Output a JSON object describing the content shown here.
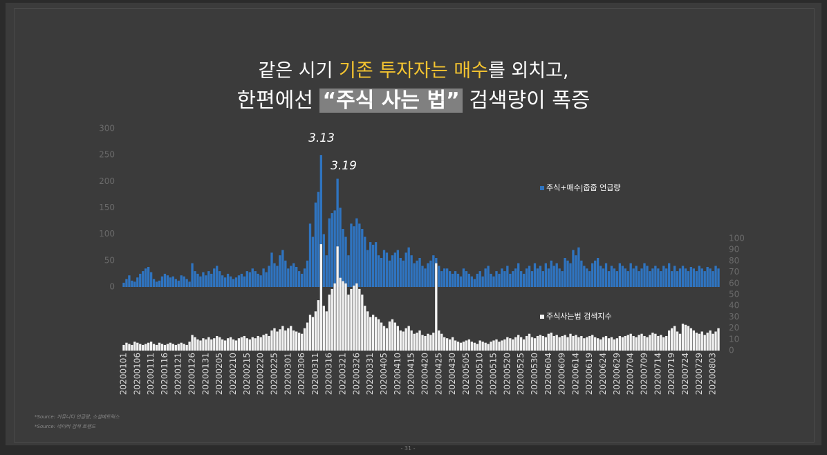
{
  "title_line1": [
    "같은 시기 ",
    "기존 투자자는 매수",
    "를 외치고,"
  ],
  "title_line2": [
    "한편에선 ",
    "“주식 사는 법”",
    " 검색량이 폭증"
  ],
  "sources": [
    "*Source: 커뮤니티 언급량, 소셜메트릭스",
    "*Source: 네이버 검색 트렌드"
  ],
  "page_number": "- 31 -",
  "chart_data": {
    "type": "bar",
    "annotations": [
      "3.13",
      "3.19"
    ],
    "categories": [
      "20200101",
      null,
      null,
      null,
      null,
      "20200106",
      null,
      null,
      null,
      null,
      "20200111",
      null,
      null,
      null,
      null,
      "20200116",
      null,
      null,
      null,
      null,
      "20200121",
      null,
      null,
      null,
      null,
      "20200126",
      null,
      null,
      null,
      null,
      "20200131",
      null,
      null,
      null,
      null,
      "20200205",
      null,
      null,
      null,
      null,
      "20200210",
      null,
      null,
      null,
      null,
      "20200215",
      null,
      null,
      null,
      null,
      "20200220",
      null,
      null,
      null,
      null,
      "20200225",
      null,
      null,
      null,
      null,
      "20200301",
      null,
      null,
      null,
      null,
      "20200306",
      null,
      null,
      null,
      null,
      "20200311",
      null,
      null,
      null,
      null,
      "20200316",
      null,
      null,
      null,
      null,
      "20200321",
      null,
      null,
      null,
      null,
      "20200326",
      null,
      null,
      null,
      null,
      "20200331",
      null,
      null,
      null,
      null,
      "20200405",
      null,
      null,
      null,
      null,
      "20200410",
      null,
      null,
      null,
      null,
      "20200415",
      null,
      null,
      null,
      null,
      "20200420",
      null,
      null,
      null,
      null,
      "20200425",
      null,
      null,
      null,
      null,
      "20200430",
      null,
      null,
      null,
      null,
      "20200505",
      null,
      null,
      null,
      null,
      "20200510",
      null,
      null,
      null,
      null,
      "20200515",
      null,
      null,
      null,
      null,
      "20200520",
      null,
      null,
      null,
      null,
      "20200525",
      null,
      null,
      null,
      null,
      "20200530",
      null,
      null,
      null,
      null,
      "20200604",
      null,
      null,
      null,
      null,
      "20200609",
      null,
      null,
      null,
      null,
      "20200614",
      null,
      null,
      null,
      null,
      "20200619",
      null,
      null,
      null,
      null,
      "20200624",
      null,
      null,
      null,
      null,
      "20200629",
      null,
      null,
      null,
      null,
      "20200704",
      null,
      null,
      null,
      null,
      "20200709",
      null,
      null,
      null,
      null,
      "20200714",
      null,
      null,
      null,
      null,
      "20200719",
      null,
      null,
      null,
      null,
      "20200724",
      null,
      null,
      null,
      null,
      "20200729",
      null,
      null,
      null,
      null,
      "20200803",
      null,
      null
    ],
    "series": [
      {
        "name": "주식+매수|줍줍 언급량",
        "color": "#2f74c0",
        "values": [
          8,
          15,
          22,
          12,
          10,
          18,
          25,
          30,
          35,
          38,
          28,
          15,
          10,
          12,
          20,
          25,
          22,
          18,
          20,
          15,
          12,
          22,
          20,
          15,
          10,
          45,
          30,
          25,
          20,
          28,
          22,
          30,
          25,
          35,
          40,
          30,
          22,
          18,
          25,
          20,
          15,
          18,
          22,
          25,
          20,
          30,
          28,
          35,
          30,
          25,
          22,
          35,
          28,
          40,
          65,
          45,
          40,
          60,
          70,
          50,
          35,
          40,
          45,
          38,
          30,
          25,
          35,
          50,
          120,
          95,
          160,
          180,
          250,
          100,
          60,
          130,
          140,
          145,
          205,
          150,
          110,
          95,
          60,
          120,
          115,
          130,
          120,
          110,
          95,
          70,
          85,
          80,
          85,
          60,
          55,
          70,
          65,
          50,
          60,
          65,
          70,
          55,
          50,
          65,
          75,
          60,
          45,
          50,
          55,
          40,
          35,
          45,
          50,
          60,
          55,
          40,
          30,
          35,
          35,
          30,
          25,
          30,
          25,
          20,
          35,
          30,
          25,
          20,
          15,
          25,
          30,
          20,
          35,
          40,
          25,
          20,
          30,
          25,
          35,
          30,
          40,
          25,
          30,
          35,
          45,
          30,
          25,
          35,
          40,
          30,
          45,
          35,
          40,
          30,
          45,
          35,
          50,
          40,
          45,
          35,
          30,
          55,
          50,
          45,
          70,
          60,
          75,
          50,
          40,
          35,
          30,
          45,
          50,
          55,
          40,
          35,
          45,
          30,
          40,
          35,
          30,
          45,
          40,
          35,
          30,
          45,
          35,
          40,
          30,
          35,
          45,
          40,
          30,
          35,
          40,
          35,
          30,
          40,
          35,
          45,
          30,
          40,
          30,
          35,
          40,
          35,
          30,
          38,
          35,
          30,
          40,
          35,
          30,
          38,
          35,
          30,
          40,
          35
        ]
      },
      {
        "name": "주식사는법 검색지수",
        "color": "#f2f2f2",
        "axis": "y2",
        "values": [
          5,
          7,
          6,
          5,
          8,
          7,
          6,
          5,
          6,
          7,
          8,
          6,
          5,
          7,
          6,
          5,
          6,
          7,
          6,
          5,
          6,
          7,
          6,
          5,
          8,
          14,
          12,
          10,
          9,
          11,
          10,
          12,
          10,
          11,
          13,
          12,
          10,
          9,
          11,
          12,
          10,
          9,
          11,
          12,
          13,
          11,
          10,
          12,
          11,
          13,
          12,
          14,
          15,
          13,
          18,
          20,
          17,
          19,
          22,
          18,
          20,
          22,
          18,
          17,
          16,
          15,
          20,
          25,
          32,
          30,
          35,
          45,
          95,
          40,
          35,
          50,
          55,
          60,
          93,
          65,
          62,
          60,
          50,
          55,
          58,
          60,
          55,
          50,
          40,
          35,
          30,
          32,
          30,
          28,
          25,
          22,
          20,
          26,
          28,
          25,
          22,
          18,
          17,
          20,
          22,
          18,
          15,
          16,
          18,
          14,
          13,
          15,
          14,
          16,
          78,
          18,
          15,
          12,
          11,
          10,
          12,
          9,
          8,
          7,
          8,
          9,
          10,
          8,
          7,
          6,
          9,
          8,
          7,
          6,
          8,
          9,
          10,
          8,
          9,
          10,
          12,
          11,
          10,
          12,
          14,
          12,
          10,
          13,
          15,
          12,
          11,
          13,
          14,
          13,
          12,
          15,
          16,
          13,
          14,
          12,
          13,
          14,
          12,
          15,
          13,
          14,
          12,
          13,
          11,
          12,
          13,
          14,
          12,
          11,
          10,
          12,
          13,
          11,
          12,
          10,
          11,
          13,
          12,
          13,
          14,
          15,
          13,
          12,
          14,
          15,
          13,
          12,
          14,
          16,
          15,
          13,
          14,
          12,
          13,
          18,
          20,
          22,
          17,
          15,
          24,
          23,
          22,
          20,
          18,
          16,
          15,
          17,
          14,
          16,
          18,
          15,
          17,
          20
        ]
      }
    ],
    "ylim": [
      0,
      300
    ],
    "yticks": [
      0,
      50,
      100,
      150,
      200,
      250,
      300
    ],
    "y2lim": [
      0,
      100
    ],
    "y2ticks": [
      0,
      10,
      20,
      30,
      40,
      50,
      60,
      70,
      80,
      90,
      100
    ]
  }
}
